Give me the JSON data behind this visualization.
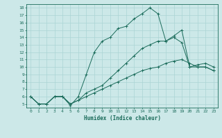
{
  "xlabel": "Humidex (Indice chaleur)",
  "bg_color": "#cce8e8",
  "line_color": "#1a6b5a",
  "grid_color": "#aad4d4",
  "xlim": [
    -0.5,
    23.5
  ],
  "ylim": [
    4.5,
    18.5
  ],
  "xticks": [
    0,
    1,
    2,
    3,
    4,
    5,
    6,
    7,
    8,
    9,
    10,
    11,
    12,
    13,
    14,
    15,
    16,
    17,
    18,
    19,
    20,
    21,
    22,
    23
  ],
  "yticks": [
    5,
    6,
    7,
    8,
    9,
    10,
    11,
    12,
    13,
    14,
    15,
    16,
    17,
    18
  ],
  "lines": [
    {
      "x": [
        0,
        1,
        2,
        3,
        4,
        5,
        6,
        7,
        8,
        9,
        10,
        11,
        12,
        13,
        14,
        15,
        16,
        17,
        18,
        19,
        20,
        21,
        22,
        23
      ],
      "y": [
        6.0,
        5.0,
        5.0,
        6.0,
        6.0,
        5.0,
        5.5,
        6.0,
        6.5,
        7.0,
        7.5,
        8.0,
        8.5,
        9.0,
        9.5,
        9.8,
        10.0,
        10.5,
        10.8,
        11.0,
        10.5,
        10.0,
        10.0,
        9.5
      ]
    },
    {
      "x": [
        0,
        1,
        2,
        3,
        4,
        5,
        6,
        7,
        8,
        9,
        10,
        11,
        12,
        13,
        14,
        15,
        16,
        17,
        18,
        19,
        20,
        21,
        22,
        23
      ],
      "y": [
        6.0,
        5.0,
        5.0,
        6.0,
        6.0,
        5.0,
        5.5,
        6.5,
        7.0,
        7.5,
        8.5,
        9.5,
        10.5,
        11.5,
        12.5,
        13.0,
        13.5,
        13.5,
        14.0,
        13.3,
        10.0,
        10.0,
        10.0,
        9.5
      ]
    },
    {
      "x": [
        0,
        1,
        2,
        3,
        4,
        5,
        6,
        7,
        8,
        9,
        10,
        11,
        12,
        13,
        14,
        15,
        16,
        17,
        18,
        19,
        20,
        21,
        22,
        23
      ],
      "y": [
        6.0,
        5.0,
        5.0,
        6.0,
        6.0,
        4.8,
        6.0,
        9.0,
        12.0,
        13.5,
        14.0,
        15.2,
        15.5,
        16.5,
        17.2,
        18.0,
        17.2,
        13.5,
        14.2,
        15.0,
        10.0,
        10.3,
        10.5,
        10.0
      ]
    }
  ]
}
